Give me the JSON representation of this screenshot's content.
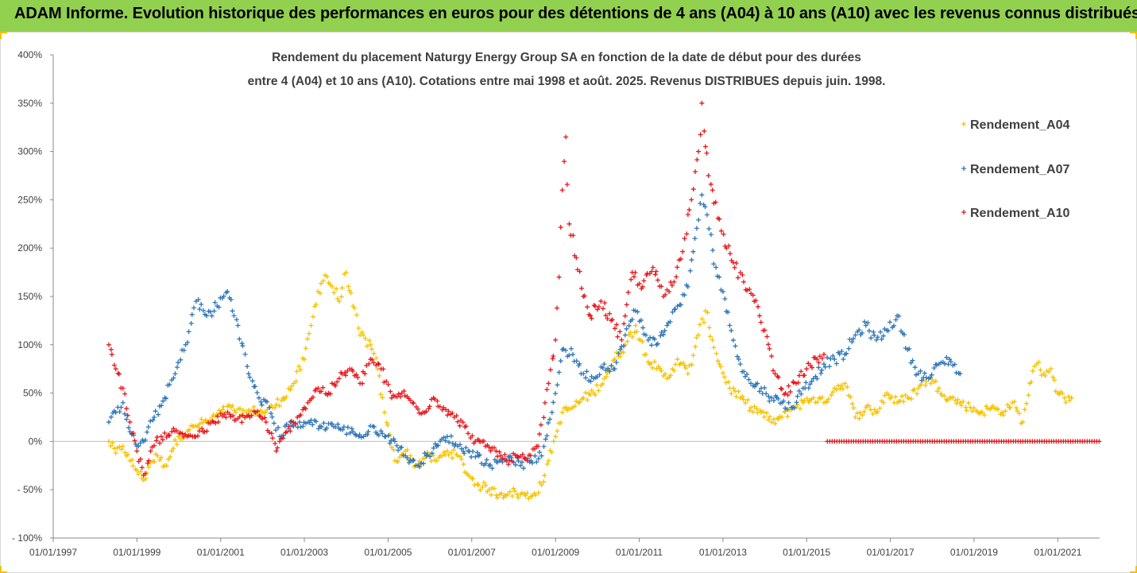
{
  "banner": {
    "title": "ADAM Informe. Evolution historique des performances en euros pour des détentions de 4 ans (A04) à 10 ans (A10) avec les revenus connus distribués"
  },
  "colors": {
    "banner_bg": "#92d050",
    "A04": "#f5c200",
    "A07": "#2e75b6",
    "A10": "#e8161c",
    "axis": "#888888",
    "text": "#404040"
  },
  "chart_data": {
    "type": "scatter",
    "title_line1": "Rendement du placement Naturgy Energy Group SA en fonction de la date de début pour des durées",
    "title_line2": "entre 4 (A04) et 10 ans (A10). Cotations entre mai 1998 et août. 2025. Revenus DISTRIBUES depuis juin. 1998.",
    "marker": "+",
    "legend_position": "top-right",
    "grid": false,
    "ylim": [
      -1.0,
      4.0
    ],
    "y_ticks": [
      "400%",
      "350%",
      "300%",
      "250%",
      "200%",
      "150%",
      "100%",
      "50%",
      "0%",
      "- 50%",
      "- 100%"
    ],
    "xlim": [
      "1997-01-01",
      "2022-01-01"
    ],
    "x_ticks": [
      "01/01/1997",
      "01/01/1999",
      "01/01/2001",
      "01/01/2003",
      "01/01/2005",
      "01/01/2007",
      "01/01/2009",
      "01/01/2011",
      "01/01/2013",
      "01/01/2015",
      "01/01/2017",
      "01/01/2019",
      "01/01/2021"
    ],
    "series": [
      {
        "name": "Rendement_A04",
        "key": "A04",
        "points": [
          [
            "1998-05-01",
            0.0
          ],
          [
            "1998-07-01",
            -0.12
          ],
          [
            "1998-09-01",
            -0.05
          ],
          [
            "1998-11-01",
            -0.2
          ],
          [
            "1999-01-01",
            -0.3
          ],
          [
            "1999-03-01",
            -0.4
          ],
          [
            "1999-05-01",
            -0.22
          ],
          [
            "1999-07-01",
            -0.15
          ],
          [
            "1999-09-01",
            -0.25
          ],
          [
            "1999-11-01",
            -0.1
          ],
          [
            "2000-01-01",
            0.05
          ],
          [
            "2000-04-01",
            0.12
          ],
          [
            "2000-07-01",
            0.18
          ],
          [
            "2000-10-01",
            0.22
          ],
          [
            "2001-01-01",
            0.3
          ],
          [
            "2001-04-01",
            0.35
          ],
          [
            "2001-07-01",
            0.28
          ],
          [
            "2001-10-01",
            0.32
          ],
          [
            "2002-01-01",
            0.3
          ],
          [
            "2002-04-01",
            0.35
          ],
          [
            "2002-07-01",
            0.45
          ],
          [
            "2002-10-01",
            0.6
          ],
          [
            "2003-01-01",
            0.85
          ],
          [
            "2003-03-01",
            1.2
          ],
          [
            "2003-05-01",
            1.55
          ],
          [
            "2003-07-01",
            1.72
          ],
          [
            "2003-09-01",
            1.6
          ],
          [
            "2003-11-01",
            1.45
          ],
          [
            "2004-01-01",
            1.75
          ],
          [
            "2004-03-01",
            1.4
          ],
          [
            "2004-05-01",
            1.1
          ],
          [
            "2004-08-01",
            1.0
          ],
          [
            "2004-10-01",
            0.75
          ],
          [
            "2004-12-01",
            0.3
          ],
          [
            "2005-03-01",
            -0.2
          ],
          [
            "2005-06-01",
            -0.1
          ],
          [
            "2005-09-01",
            -0.25
          ],
          [
            "2005-12-01",
            -0.15
          ],
          [
            "2006-03-01",
            -0.2
          ],
          [
            "2006-06-01",
            -0.1
          ],
          [
            "2006-09-01",
            -0.15
          ],
          [
            "2006-12-01",
            -0.35
          ],
          [
            "2007-03-01",
            -0.45
          ],
          [
            "2007-06-01",
            -0.5
          ],
          [
            "2007-09-01",
            -0.55
          ],
          [
            "2007-12-01",
            -0.52
          ],
          [
            "2008-03-01",
            -0.55
          ],
          [
            "2008-06-01",
            -0.57
          ],
          [
            "2008-09-01",
            -0.45
          ],
          [
            "2008-11-01",
            -0.2
          ],
          [
            "2009-01-01",
            0.05
          ],
          [
            "2009-03-01",
            0.3
          ],
          [
            "2009-06-01",
            0.35
          ],
          [
            "2009-09-01",
            0.45
          ],
          [
            "2009-12-01",
            0.5
          ],
          [
            "2010-03-01",
            0.65
          ],
          [
            "2010-06-01",
            0.85
          ],
          [
            "2010-09-01",
            1.0
          ],
          [
            "2010-12-01",
            1.2
          ],
          [
            "2011-03-01",
            0.9
          ],
          [
            "2011-06-01",
            0.75
          ],
          [
            "2011-09-01",
            0.65
          ],
          [
            "2011-12-01",
            0.85
          ],
          [
            "2012-03-01",
            0.7
          ],
          [
            "2012-06-01",
            1.1
          ],
          [
            "2012-08-01",
            1.35
          ],
          [
            "2012-10-01",
            1.05
          ],
          [
            "2012-12-01",
            0.8
          ],
          [
            "2013-03-01",
            0.55
          ],
          [
            "2013-06-01",
            0.45
          ],
          [
            "2013-09-01",
            0.35
          ],
          [
            "2013-12-01",
            0.3
          ],
          [
            "2014-03-01",
            0.2
          ],
          [
            "2014-06-01",
            0.25
          ],
          [
            "2014-09-01",
            0.35
          ],
          [
            "2014-12-01",
            0.4
          ],
          [
            "2015-03-01",
            0.45
          ],
          [
            "2015-06-01",
            0.4
          ],
          [
            "2015-09-01",
            0.55
          ],
          [
            "2015-12-01",
            0.6
          ],
          [
            "2016-03-01",
            0.25
          ],
          [
            "2016-06-01",
            0.35
          ],
          [
            "2016-09-01",
            0.3
          ],
          [
            "2016-12-01",
            0.5
          ],
          [
            "2017-03-01",
            0.4
          ],
          [
            "2017-06-01",
            0.45
          ],
          [
            "2017-09-01",
            0.55
          ],
          [
            "2017-12-01",
            0.65
          ],
          [
            "2018-03-01",
            0.55
          ],
          [
            "2018-06-01",
            0.45
          ],
          [
            "2018-09-01",
            0.4
          ],
          [
            "2018-12-01",
            0.35
          ],
          [
            "2019-03-01",
            0.3
          ],
          [
            "2019-06-01",
            0.35
          ],
          [
            "2019-09-01",
            0.3
          ],
          [
            "2019-12-01",
            0.4
          ],
          [
            "2020-03-01",
            0.2
          ],
          [
            "2020-05-01",
            0.6
          ],
          [
            "2020-07-01",
            0.8
          ],
          [
            "2020-09-01",
            0.7
          ],
          [
            "2020-11-01",
            0.75
          ],
          [
            "2021-01-01",
            0.5
          ],
          [
            "2021-03-01",
            0.45
          ],
          [
            "2021-05-01",
            0.45
          ]
        ]
      },
      {
        "name": "Rendement_A07",
        "key": "A07",
        "points": [
          [
            "1998-05-01",
            0.2
          ],
          [
            "1998-07-01",
            0.3
          ],
          [
            "1998-09-01",
            0.4
          ],
          [
            "1998-11-01",
            0.1
          ],
          [
            "1999-01-01",
            -0.05
          ],
          [
            "1999-03-01",
            0.0
          ],
          [
            "1999-06-01",
            0.25
          ],
          [
            "1999-09-01",
            0.45
          ],
          [
            "1999-12-01",
            0.7
          ],
          [
            "2000-03-01",
            1.0
          ],
          [
            "2000-06-01",
            1.45
          ],
          [
            "2000-09-01",
            1.3
          ],
          [
            "2000-12-01",
            1.4
          ],
          [
            "2001-03-01",
            1.55
          ],
          [
            "2001-06-01",
            1.2
          ],
          [
            "2001-09-01",
            0.7
          ],
          [
            "2001-12-01",
            0.45
          ],
          [
            "2002-03-01",
            0.35
          ],
          [
            "2002-06-01",
            0.05
          ],
          [
            "2002-09-01",
            0.2
          ],
          [
            "2002-12-01",
            0.15
          ],
          [
            "2003-03-01",
            0.22
          ],
          [
            "2003-06-01",
            0.15
          ],
          [
            "2003-09-01",
            0.18
          ],
          [
            "2003-12-01",
            0.12
          ],
          [
            "2004-03-01",
            0.1
          ],
          [
            "2004-06-01",
            0.05
          ],
          [
            "2004-09-01",
            0.15
          ],
          [
            "2004-12-01",
            0.05
          ],
          [
            "2005-03-01",
            0.0
          ],
          [
            "2005-06-01",
            -0.15
          ],
          [
            "2005-09-01",
            -0.25
          ],
          [
            "2005-12-01",
            -0.15
          ],
          [
            "2006-03-01",
            -0.05
          ],
          [
            "2006-06-01",
            0.05
          ],
          [
            "2006-09-01",
            -0.05
          ],
          [
            "2006-12-01",
            -0.1
          ],
          [
            "2007-03-01",
            -0.15
          ],
          [
            "2007-06-01",
            -0.25
          ],
          [
            "2007-09-01",
            -0.2
          ],
          [
            "2007-12-01",
            -0.15
          ],
          [
            "2008-03-01",
            -0.25
          ],
          [
            "2008-06-01",
            -0.2
          ],
          [
            "2008-09-01",
            -0.15
          ],
          [
            "2008-12-01",
            0.3
          ],
          [
            "2009-03-01",
            0.95
          ],
          [
            "2009-06-01",
            0.9
          ],
          [
            "2009-09-01",
            0.7
          ],
          [
            "2009-12-01",
            0.65
          ],
          [
            "2010-03-01",
            0.8
          ],
          [
            "2010-06-01",
            0.75
          ],
          [
            "2010-09-01",
            1.1
          ],
          [
            "2010-12-01",
            1.35
          ],
          [
            "2011-03-01",
            1.1
          ],
          [
            "2011-06-01",
            1.0
          ],
          [
            "2011-09-01",
            1.2
          ],
          [
            "2011-12-01",
            1.4
          ],
          [
            "2012-03-01",
            1.6
          ],
          [
            "2012-05-01",
            2.1
          ],
          [
            "2012-07-01",
            2.55
          ],
          [
            "2012-09-01",
            2.2
          ],
          [
            "2012-11-01",
            1.8
          ],
          [
            "2013-01-01",
            1.55
          ],
          [
            "2013-03-01",
            1.2
          ],
          [
            "2013-06-01",
            0.8
          ],
          [
            "2013-09-01",
            0.6
          ],
          [
            "2013-12-01",
            0.55
          ],
          [
            "2014-03-01",
            0.45
          ],
          [
            "2014-06-01",
            0.4
          ],
          [
            "2014-09-01",
            0.35
          ],
          [
            "2014-12-01",
            0.55
          ],
          [
            "2015-03-01",
            0.65
          ],
          [
            "2015-06-01",
            0.8
          ],
          [
            "2015-09-01",
            0.85
          ],
          [
            "2015-12-01",
            0.9
          ],
          [
            "2016-03-01",
            1.1
          ],
          [
            "2016-06-01",
            1.2
          ],
          [
            "2016-09-01",
            1.05
          ],
          [
            "2016-12-01",
            1.15
          ],
          [
            "2017-03-01",
            1.3
          ],
          [
            "2017-06-01",
            0.95
          ],
          [
            "2017-09-01",
            0.7
          ],
          [
            "2017-12-01",
            0.65
          ],
          [
            "2018-03-01",
            0.8
          ],
          [
            "2018-06-01",
            0.85
          ],
          [
            "2018-09-01",
            0.7
          ]
        ]
      },
      {
        "name": "Rendement_A10",
        "key": "A10",
        "points": [
          [
            "1998-05-01",
            1.0
          ],
          [
            "1998-07-01",
            0.75
          ],
          [
            "1998-09-01",
            0.55
          ],
          [
            "1998-11-01",
            0.2
          ],
          [
            "1999-01-01",
            -0.1
          ],
          [
            "1999-03-01",
            -0.35
          ],
          [
            "1999-05-01",
            -0.1
          ],
          [
            "1999-08-01",
            0.05
          ],
          [
            "1999-11-01",
            0.1
          ],
          [
            "2000-02-01",
            0.08
          ],
          [
            "2000-05-01",
            0.05
          ],
          [
            "2000-08-01",
            0.1
          ],
          [
            "2000-11-01",
            0.2
          ],
          [
            "2001-02-01",
            0.28
          ],
          [
            "2001-05-01",
            0.22
          ],
          [
            "2001-08-01",
            0.25
          ],
          [
            "2001-11-01",
            0.3
          ],
          [
            "2002-02-01",
            0.2
          ],
          [
            "2002-05-01",
            -0.1
          ],
          [
            "2002-08-01",
            0.1
          ],
          [
            "2002-11-01",
            0.25
          ],
          [
            "2003-02-01",
            0.4
          ],
          [
            "2003-05-01",
            0.55
          ],
          [
            "2003-08-01",
            0.5
          ],
          [
            "2003-11-01",
            0.65
          ],
          [
            "2004-02-01",
            0.75
          ],
          [
            "2004-05-01",
            0.6
          ],
          [
            "2004-08-01",
            0.85
          ],
          [
            "2004-11-01",
            0.75
          ],
          [
            "2005-02-01",
            0.45
          ],
          [
            "2005-05-01",
            0.5
          ],
          [
            "2005-08-01",
            0.4
          ],
          [
            "2005-11-01",
            0.3
          ],
          [
            "2006-02-01",
            0.45
          ],
          [
            "2006-05-01",
            0.35
          ],
          [
            "2006-08-01",
            0.25
          ],
          [
            "2006-11-01",
            0.15
          ],
          [
            "2007-02-01",
            0.0
          ],
          [
            "2007-05-01",
            -0.05
          ],
          [
            "2007-08-01",
            -0.1
          ],
          [
            "2007-11-01",
            -0.2
          ],
          [
            "2008-02-01",
            -0.15
          ],
          [
            "2008-05-01",
            -0.2
          ],
          [
            "2008-08-01",
            -0.05
          ],
          [
            "2008-11-01",
            0.6
          ],
          [
            "2009-01-01",
            1.05
          ],
          [
            "2009-02-01",
            1.7
          ],
          [
            "2009-03-01",
            2.6
          ],
          [
            "2009-04-01",
            3.15
          ],
          [
            "2009-05-01",
            2.25
          ],
          [
            "2009-07-01",
            1.9
          ],
          [
            "2009-09-01",
            1.5
          ],
          [
            "2009-11-01",
            1.3
          ],
          [
            "2010-02-01",
            1.45
          ],
          [
            "2010-05-01",
            1.25
          ],
          [
            "2010-08-01",
            1.05
          ],
          [
            "2010-11-01",
            1.75
          ],
          [
            "2011-02-01",
            1.6
          ],
          [
            "2011-05-01",
            1.8
          ],
          [
            "2011-08-01",
            1.5
          ],
          [
            "2011-11-01",
            1.65
          ],
          [
            "2012-02-01",
            2.1
          ],
          [
            "2012-04-01",
            2.5
          ],
          [
            "2012-06-01",
            3.0
          ],
          [
            "2012-07-01",
            3.5
          ],
          [
            "2012-08-01",
            3.05
          ],
          [
            "2012-10-01",
            2.6
          ],
          [
            "2012-12-01",
            2.3
          ],
          [
            "2013-02-01",
            2.0
          ],
          [
            "2013-04-01",
            1.85
          ],
          [
            "2013-07-01",
            1.65
          ],
          [
            "2013-10-01",
            1.45
          ],
          [
            "2014-01-01",
            1.15
          ],
          [
            "2014-04-01",
            0.7
          ],
          [
            "2014-07-01",
            0.5
          ],
          [
            "2014-10-01",
            0.6
          ],
          [
            "2015-01-01",
            0.75
          ],
          [
            "2015-04-01",
            0.85
          ],
          [
            "2015-06-01",
            0.9
          ]
        ],
        "flat_zero_from": "2015-07-01",
        "flat_zero_to": "2022-01-01"
      }
    ]
  }
}
